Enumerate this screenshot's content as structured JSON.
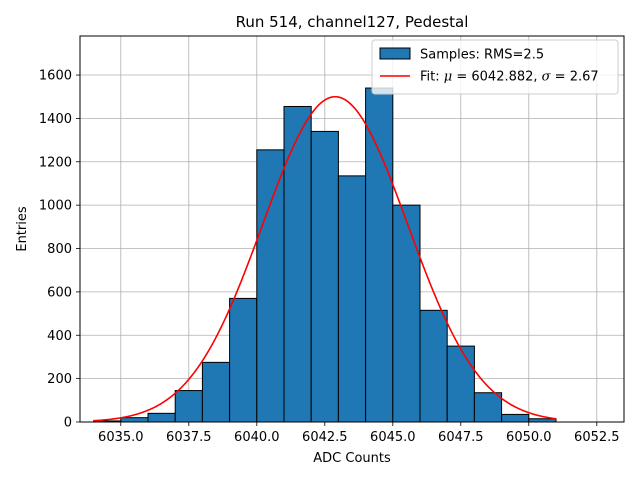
{
  "chart_data": {
    "type": "bar",
    "title": "Run 514, channel127, Pedestal",
    "xlabel": "ADC Counts",
    "ylabel": "Entries",
    "xlim": [
      6033.5,
      6053.5
    ],
    "ylim": [
      0,
      1780
    ],
    "xticks": [
      6035.0,
      6037.5,
      6040.0,
      6042.5,
      6045.0,
      6047.5,
      6050.0,
      6052.5
    ],
    "xtick_labels": [
      "6035.0",
      "6037.5",
      "6040.0",
      "6042.5",
      "6045.0",
      "6047.5",
      "6050.0",
      "6052.5"
    ],
    "yticks": [
      0,
      200,
      400,
      600,
      800,
      1000,
      1200,
      1400,
      1600
    ],
    "ytick_labels": [
      "0",
      "200",
      "400",
      "600",
      "800",
      "1000",
      "1200",
      "1400",
      "1600"
    ],
    "grid": true,
    "bins": {
      "edges": [
        6034,
        6035,
        6036,
        6037,
        6038,
        6039,
        6040,
        6041,
        6042,
        6043,
        6044,
        6045,
        6046,
        6047,
        6048,
        6049,
        6050,
        6051
      ],
      "counts": [
        5,
        20,
        40,
        145,
        275,
        570,
        1255,
        1455,
        1340,
        1135,
        1540,
        1000,
        515,
        350,
        135,
        35,
        15
      ],
      "color": "#1f77b4",
      "edgecolor": "#000000"
    },
    "fit": {
      "type": "gaussian",
      "mu": 6042.882,
      "sigma": 2.67,
      "amplitude": 1500,
      "x_range": [
        6034,
        6051
      ],
      "color": "#ff0000"
    },
    "legend": {
      "position": "top-right",
      "entries": [
        {
          "kind": "patch",
          "label": "Samples: RMS=2.5",
          "color": "#1f77b4"
        },
        {
          "kind": "line",
          "label_prefix": "Fit: ",
          "mu_symbol": "μ",
          "mu_text": " = 6042.882, ",
          "sigma_symbol": "σ",
          "sigma_text": " = 2.67",
          "color": "#ff0000"
        }
      ]
    }
  }
}
